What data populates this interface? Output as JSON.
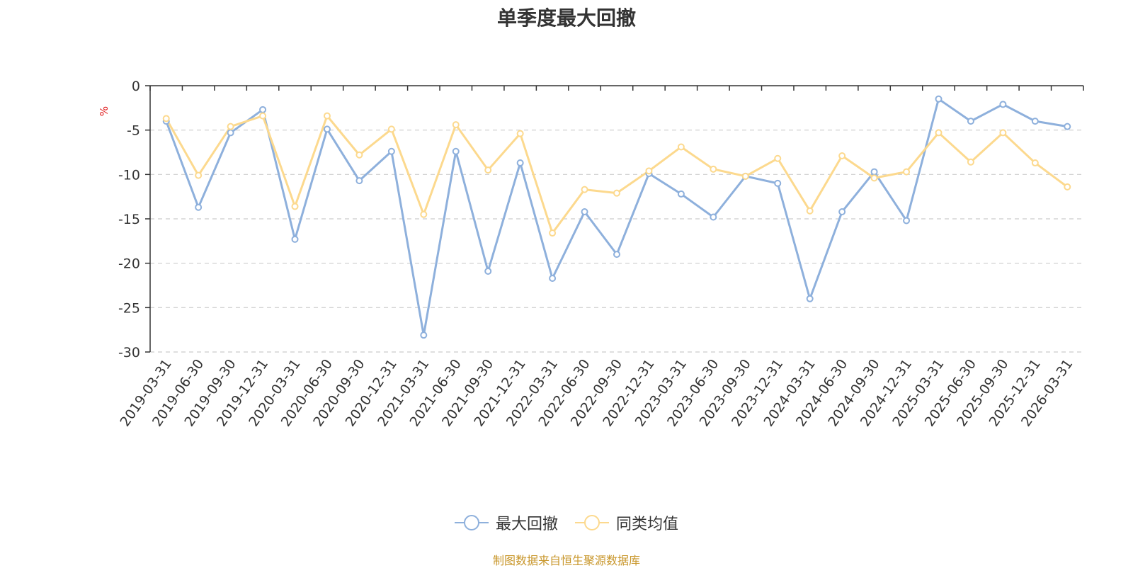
{
  "chart_data": {
    "type": "line",
    "title": "单季度最大回撤",
    "ylabel": "%",
    "ylim": [
      -30,
      0
    ],
    "yticks": [
      0,
      -5,
      -10,
      -15,
      -20,
      -25,
      -30
    ],
    "grid": true,
    "legend_position": "bottom",
    "categories": [
      "2019-03-31",
      "2019-06-30",
      "2019-09-30",
      "2019-12-31",
      "2020-03-31",
      "2020-06-30",
      "2020-09-30",
      "2020-12-31",
      "2021-03-31",
      "2021-06-30",
      "2021-09-30",
      "2021-12-31",
      "2022-03-31",
      "2022-06-30",
      "2022-09-30",
      "2022-12-31",
      "2023-03-31",
      "2023-06-30",
      "2023-09-30",
      "2023-12-31",
      "2024-03-31",
      "2024-06-30",
      "2024-09-30",
      "2024-12-31",
      "2025-03-31",
      "2025-06-30",
      "2025-09-30",
      "2025-12-31",
      "2026-03-31"
    ],
    "series": [
      {
        "name": "最大回撤",
        "color": "#8eb0dc",
        "values": [
          -4.0,
          -13.7,
          -5.3,
          -2.7,
          -17.3,
          -4.9,
          -10.7,
          -7.4,
          -28.1,
          -7.4,
          -20.9,
          -8.7,
          -21.7,
          -14.2,
          -19.0,
          -9.9,
          -12.2,
          -14.8,
          -10.2,
          -11.0,
          -24.0,
          -14.2,
          -9.7,
          -15.2,
          -1.5,
          -4.0,
          -2.1,
          -4.0,
          -4.6
        ]
      },
      {
        "name": "同类均值",
        "color": "#fcd98e",
        "values": [
          -3.7,
          -10.1,
          -4.6,
          -3.4,
          -13.6,
          -3.4,
          -7.8,
          -4.9,
          -14.5,
          -4.4,
          -9.5,
          -5.4,
          -16.6,
          -11.7,
          -12.1,
          -9.6,
          -6.9,
          -9.4,
          -10.2,
          -8.2,
          -14.1,
          -7.9,
          -10.4,
          -9.7,
          -5.3,
          -8.6,
          -5.3,
          -8.7,
          -11.4
        ]
      }
    ]
  },
  "source_note": "制图数据来自恒生聚源数据库"
}
